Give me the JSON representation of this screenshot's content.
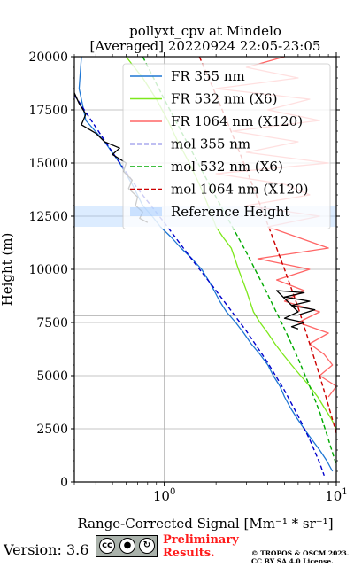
{
  "chart_data": {
    "type": "line",
    "title": "pollyxt_cpv at Mindelo",
    "subtitle": "[Averaged] 20220924 22:05-23:05",
    "xlabel": "Range-Corrected Signal [Mm⁻¹ * sr⁻¹]",
    "ylabel": "Height (m)",
    "xscale": "log",
    "xlim": [
      0.3,
      10
    ],
    "ylim": [
      0,
      20000
    ],
    "xticks": [
      {
        "value": 1,
        "base": "10",
        "exp": "0"
      },
      {
        "value": 10,
        "base": "10",
        "exp": "1"
      }
    ],
    "yticks": [
      0,
      2500,
      5000,
      7500,
      10000,
      12500,
      15000,
      17500,
      20000
    ],
    "grid": true,
    "legend_position": "top-right",
    "series": [
      {
        "name": "FR 355 nm",
        "color": "#1f77d4",
        "style": "solid",
        "points": [
          [
            0.33,
            20000
          ],
          [
            0.32,
            18500
          ],
          [
            0.35,
            17000
          ],
          [
            0.45,
            16000
          ],
          [
            0.55,
            15000
          ],
          [
            0.65,
            14000
          ],
          [
            0.75,
            13000
          ],
          [
            0.85,
            12500
          ],
          [
            0.95,
            12000
          ],
          [
            1.1,
            11500
          ],
          [
            1.25,
            11000
          ],
          [
            1.45,
            10500
          ],
          [
            1.65,
            10000
          ],
          [
            1.8,
            9500
          ],
          [
            1.95,
            9000
          ],
          [
            2.1,
            8500
          ],
          [
            2.3,
            8000
          ],
          [
            2.6,
            7500
          ],
          [
            2.9,
            7000
          ],
          [
            3.2,
            6500
          ],
          [
            3.6,
            6000
          ],
          [
            4.0,
            5500
          ],
          [
            4.3,
            5000
          ],
          [
            4.7,
            4500
          ],
          [
            5.0,
            4000
          ],
          [
            5.4,
            3500
          ],
          [
            5.9,
            3000
          ],
          [
            6.5,
            2500
          ],
          [
            7.2,
            2000
          ],
          [
            8.0,
            1500
          ],
          [
            8.8,
            1000
          ],
          [
            9.5,
            500
          ]
        ]
      },
      {
        "name": "FR 532 nm (X6)",
        "color": "#7de81c",
        "style": "solid",
        "points": [
          [
            0.6,
            20000
          ],
          [
            0.75,
            19000
          ],
          [
            0.9,
            18000
          ],
          [
            1.05,
            17000
          ],
          [
            1.2,
            16000
          ],
          [
            1.4,
            15000
          ],
          [
            1.6,
            14000
          ],
          [
            1.8,
            13000
          ],
          [
            2.0,
            12000
          ],
          [
            2.2,
            11500
          ],
          [
            2.45,
            11000
          ],
          [
            2.7,
            10000
          ],
          [
            3.0,
            9000
          ],
          [
            3.3,
            8000
          ],
          [
            3.6,
            7500
          ],
          [
            4.0,
            7000
          ],
          [
            4.4,
            6500
          ],
          [
            4.9,
            6000
          ],
          [
            5.5,
            5500
          ],
          [
            6.2,
            5000
          ],
          [
            7.0,
            4500
          ],
          [
            7.8,
            4000
          ],
          [
            8.5,
            3500
          ],
          [
            9.3,
            3000
          ],
          [
            10,
            2500
          ]
        ]
      },
      {
        "name": "FR 1064 nm (X120)",
        "color": "#ff6666",
        "style": "solid",
        "points": [
          [
            5,
            20000
          ],
          [
            3,
            19500
          ],
          [
            6,
            19000
          ],
          [
            2,
            18500
          ],
          [
            7,
            18000
          ],
          [
            4,
            17500
          ],
          [
            8,
            17000
          ],
          [
            2.5,
            16500
          ],
          [
            6,
            16000
          ],
          [
            3,
            15500
          ],
          [
            9,
            15000
          ],
          [
            2,
            14500
          ],
          [
            5,
            14000
          ],
          [
            7,
            13500
          ],
          [
            3,
            13000
          ],
          [
            8,
            12500
          ],
          [
            4,
            12000
          ],
          [
            6,
            11500
          ],
          [
            9,
            11000
          ],
          [
            3.5,
            10500
          ],
          [
            7,
            10000
          ],
          [
            4.5,
            9500
          ],
          [
            6.5,
            9000
          ],
          [
            5,
            8500
          ],
          [
            8,
            8000
          ],
          [
            6,
            7500
          ],
          [
            9,
            7000
          ],
          [
            7,
            6500
          ],
          [
            8.5,
            6000
          ],
          [
            9.5,
            5500
          ],
          [
            8,
            5000
          ],
          [
            10,
            4500
          ],
          [
            9,
            4000
          ]
        ]
      },
      {
        "name": "mol 355 nm",
        "color": "#0000cc",
        "style": "dashed",
        "points": [
          [
            0.3,
            18200
          ],
          [
            0.5,
            15500
          ],
          [
            0.7,
            13800
          ],
          [
            1.0,
            12200
          ],
          [
            1.5,
            10300
          ],
          [
            2.0,
            9000
          ],
          [
            3.0,
            7100
          ],
          [
            4.0,
            5600
          ],
          [
            5.0,
            4300
          ],
          [
            6.0,
            3100
          ],
          [
            7.0,
            2000
          ],
          [
            8.0,
            900
          ],
          [
            8.5,
            300
          ]
        ]
      },
      {
        "name": "mol 532 nm (X6)",
        "color": "#00aa00",
        "style": "dashed",
        "points": [
          [
            0.75,
            20000
          ],
          [
            1.0,
            18000
          ],
          [
            1.5,
            15300
          ],
          [
            2.0,
            13400
          ],
          [
            3.0,
            10800
          ],
          [
            4.0,
            8800
          ],
          [
            5.0,
            7200
          ],
          [
            6.0,
            5800
          ],
          [
            7.0,
            4500
          ],
          [
            8.0,
            3300
          ],
          [
            9.0,
            2000
          ],
          [
            10,
            800
          ]
        ]
      },
      {
        "name": "mol 1064 nm (X120)",
        "color": "#cc0000",
        "style": "dashed",
        "points": [
          [
            1.6,
            20000
          ],
          [
            2.0,
            18200
          ],
          [
            2.5,
            16300
          ],
          [
            3.0,
            14700
          ],
          [
            4.0,
            12100
          ],
          [
            5.0,
            10000
          ],
          [
            6.0,
            8200
          ],
          [
            7.0,
            6500
          ],
          [
            8.0,
            5000
          ],
          [
            9.0,
            3600
          ],
          [
            10,
            2300
          ]
        ]
      },
      {
        "name": "Reference Height",
        "color": "#9cc8ff",
        "style": "band",
        "y_range": [
          12000,
          13000
        ]
      }
    ],
    "extra_series": [
      {
        "color": "#000000",
        "style": "solid",
        "points": [
          [
            0.3,
            18300
          ],
          [
            0.32,
            17800
          ],
          [
            0.35,
            17300
          ],
          [
            0.33,
            16800
          ],
          [
            0.4,
            16400
          ],
          [
            0.45,
            16000
          ],
          [
            0.55,
            15700
          ],
          [
            0.5,
            15400
          ],
          [
            0.6,
            15000
          ],
          [
            0.58,
            14600
          ],
          [
            0.65,
            14200
          ],
          [
            0.62,
            13800
          ],
          [
            0.7,
            13400
          ],
          [
            0.68,
            13000
          ],
          [
            0.75,
            12700
          ],
          [
            0.72,
            12400
          ],
          [
            0.8,
            12200
          ]
        ]
      },
      {
        "color": "#000000",
        "style": "solid",
        "points": [
          [
            0.3,
            7850
          ],
          [
            6.0,
            7850
          ],
          [
            7.5,
            8100
          ],
          [
            5.5,
            8300
          ],
          [
            7.0,
            8500
          ],
          [
            5.0,
            8700
          ],
          [
            6.5,
            8900
          ],
          [
            4.5,
            9000
          ],
          [
            6.0,
            8000
          ],
          [
            5.0,
            7700
          ],
          [
            6.5,
            7500
          ],
          [
            5.5,
            7300
          ],
          [
            6.0,
            7200
          ]
        ]
      }
    ]
  },
  "footer": {
    "version": "Version: 3.6",
    "preliminary_line1": "Preliminary",
    "preliminary_line2": "Results.",
    "copyright_line1": "© TROPOS & OSCM 2023.",
    "copyright_line2": "CC BY SA 4.0 License.",
    "cc_badge_labels": [
      "cc",
      "BY",
      "SA"
    ]
  }
}
